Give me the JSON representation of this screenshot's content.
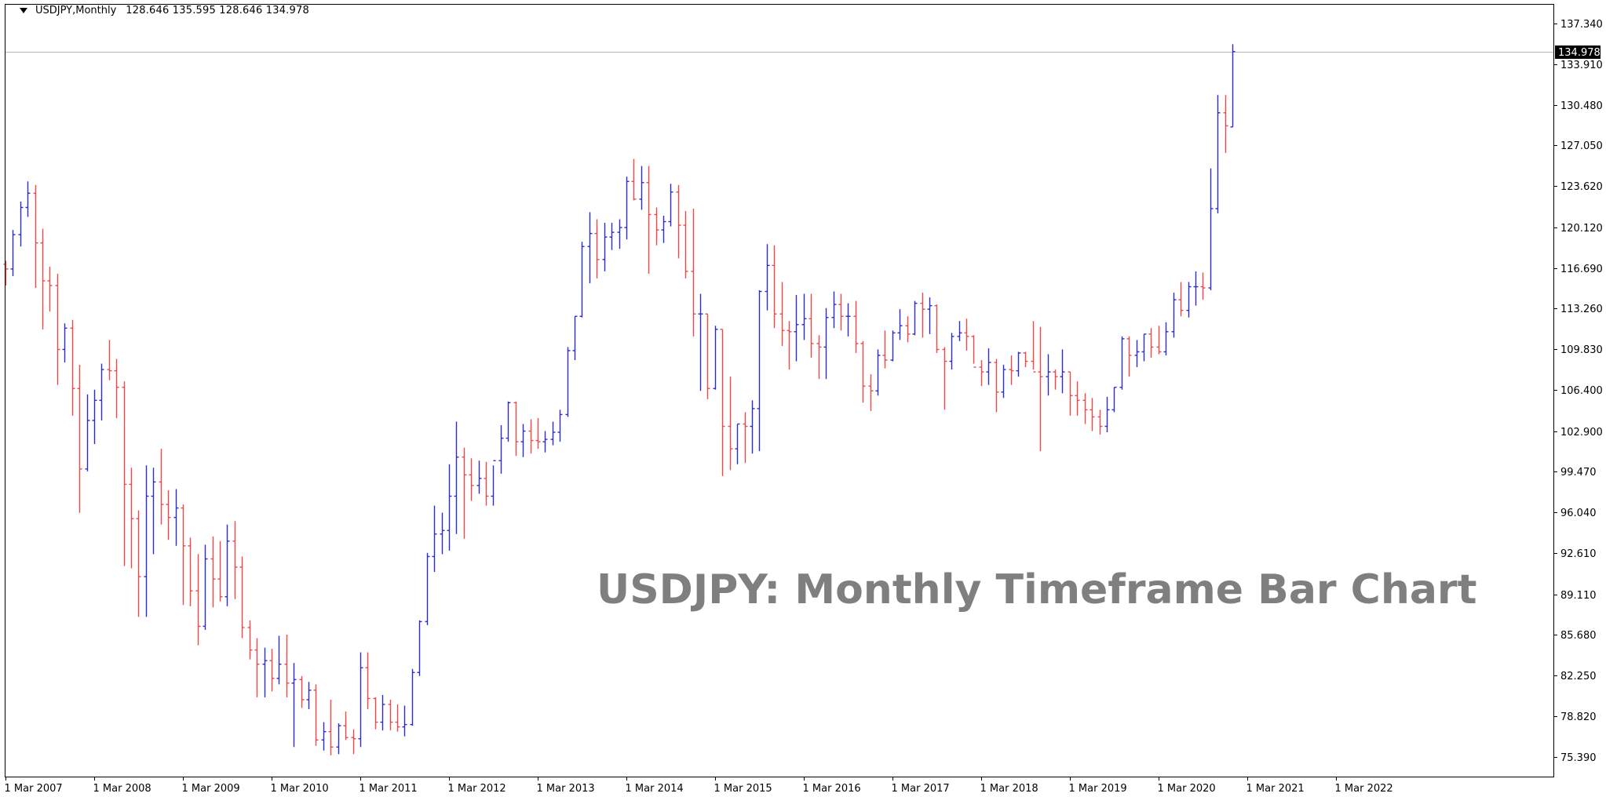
{
  "header": {
    "symbol_timeframe": "USDJPY,Monthly",
    "ohlc": "128.646 135.595 128.646 134.978"
  },
  "watermark": "USDJPY: Monthly Timeframe Bar Chart",
  "colors": {
    "up": "#2a2ad6",
    "down": "#f04848",
    "axis": "#000000",
    "grid": "none",
    "last_price_line": "#b4b4c8",
    "last_price_bg": "#000000",
    "last_price_text": "#ffffff",
    "background": "#ffffff",
    "watermark": "#7f7f7f"
  },
  "chart_data": {
    "type": "ohlc_bar",
    "symbol": "USDJPY",
    "timeframe": "Monthly",
    "grid": false,
    "ylim": [
      73.7,
      139.0
    ],
    "price_axis_ticks": [
      "137.340",
      "133.910",
      "130.480",
      "127.050",
      "123.620",
      "120.120",
      "116.690",
      "113.260",
      "109.830",
      "106.400",
      "102.900",
      "99.470",
      "96.040",
      "92.610",
      "89.110",
      "85.680",
      "82.250",
      "78.820",
      "75.390"
    ],
    "time_axis_ticks": [
      "1 Mar 2007",
      "1 Mar 2008",
      "1 Mar 2009",
      "1 Mar 2010",
      "1 Mar 2011",
      "1 Mar 2012",
      "1 Mar 2013",
      "1 Mar 2014",
      "1 Mar 2015",
      "1 Mar 2016",
      "1 Mar 2017",
      "1 Mar 2018",
      "1 Mar 2019",
      "1 Mar 2020",
      "1 Mar 2021",
      "1 Mar 2022"
    ],
    "last_price": "134.978",
    "bars": [
      [
        117.0,
        117.3,
        115.2,
        116.6
      ],
      [
        116.6,
        119.9,
        116.0,
        119.5
      ],
      [
        119.5,
        122.3,
        118.5,
        121.8
      ],
      [
        121.8,
        124.0,
        121.0,
        123.0
      ],
      [
        123.0,
        123.7,
        115.0,
        118.8
      ],
      [
        118.8,
        120.0,
        111.5,
        115.6
      ],
      [
        115.6,
        116.8,
        113.0,
        115.2
      ],
      [
        115.2,
        116.2,
        106.8,
        109.8
      ],
      [
        109.8,
        112.0,
        108.7,
        111.6
      ],
      [
        111.6,
        112.3,
        104.2,
        106.5
      ],
      [
        106.5,
        108.5,
        96.0,
        99.7
      ],
      [
        99.7,
        106.0,
        99.5,
        103.8
      ],
      [
        103.8,
        106.4,
        101.8,
        105.5
      ],
      [
        105.5,
        108.6,
        103.8,
        108.1
      ],
      [
        108.1,
        110.6,
        107.2,
        108.0
      ],
      [
        108.0,
        109.0,
        104.0,
        106.6
      ],
      [
        106.6,
        107.1,
        91.5,
        98.4
      ],
      [
        98.4,
        99.8,
        91.3,
        95.5
      ],
      [
        95.5,
        96.2,
        87.2,
        90.6
      ],
      [
        90.6,
        100.0,
        87.2,
        97.4
      ],
      [
        97.4,
        99.8,
        92.5,
        98.6
      ],
      [
        98.6,
        101.4,
        95.0,
        96.7
      ],
      [
        96.7,
        97.9,
        93.7,
        95.6
      ],
      [
        95.6,
        98.0,
        93.2,
        96.4
      ],
      [
        96.4,
        96.7,
        88.2,
        93.2
      ],
      [
        93.2,
        93.9,
        88.1,
        89.4
      ],
      [
        89.4,
        92.5,
        84.8,
        86.4
      ],
      [
        86.4,
        93.3,
        86.1,
        92.1
      ],
      [
        92.1,
        94.0,
        88.0,
        90.4
      ],
      [
        90.4,
        93.6,
        88.5,
        88.9
      ],
      [
        88.9,
        95.0,
        88.1,
        93.6
      ],
      [
        93.6,
        95.3,
        88.7,
        91.4
      ],
      [
        91.4,
        92.3,
        85.4,
        86.3
      ],
      [
        86.3,
        86.9,
        83.6,
        84.4
      ],
      [
        84.4,
        85.4,
        80.4,
        83.2
      ],
      [
        83.2,
        84.6,
        80.4,
        83.5
      ],
      [
        83.5,
        84.5,
        80.9,
        82.0
      ],
      [
        82.0,
        85.6,
        81.5,
        83.2
      ],
      [
        83.2,
        85.7,
        80.4,
        81.6
      ],
      [
        81.6,
        83.3,
        76.2,
        81.9
      ],
      [
        81.9,
        82.2,
        79.5,
        80.2
      ],
      [
        80.2,
        81.7,
        79.4,
        81.0
      ],
      [
        81.0,
        81.5,
        76.3,
        76.8
      ],
      [
        76.8,
        78.3,
        75.9,
        77.5
      ],
      [
        77.5,
        80.2,
        75.5,
        76.2
      ],
      [
        76.2,
        78.2,
        75.6,
        78.0
      ],
      [
        78.0,
        79.2,
        76.8,
        77.0
      ],
      [
        77.0,
        77.7,
        75.6,
        76.9
      ],
      [
        76.9,
        84.2,
        76.2,
        82.9
      ],
      [
        82.9,
        84.2,
        79.4,
        80.3
      ],
      [
        80.3,
        80.4,
        77.7,
        78.3
      ],
      [
        78.3,
        80.6,
        77.6,
        79.8
      ],
      [
        79.8,
        80.2,
        77.6,
        78.3
      ],
      [
        78.3,
        79.8,
        77.5,
        77.9
      ],
      [
        77.9,
        79.7,
        77.1,
        78.1
      ],
      [
        78.1,
        82.8,
        78.0,
        82.5
      ],
      [
        82.5,
        86.9,
        82.2,
        86.8
      ],
      [
        86.8,
        92.6,
        86.5,
        92.3
      ],
      [
        92.3,
        96.6,
        91.0,
        94.2
      ],
      [
        94.2,
        96.0,
        92.5,
        94.5
      ],
      [
        94.5,
        100.1,
        92.8,
        97.4
      ],
      [
        97.4,
        103.7,
        94.2,
        100.7
      ],
      [
        100.7,
        101.5,
        93.8,
        99.2
      ],
      [
        99.2,
        100.6,
        97.0,
        98.3
      ],
      [
        98.3,
        100.4,
        97.6,
        98.9
      ],
      [
        98.9,
        100.3,
        96.6,
        97.4
      ],
      [
        97.4,
        100.0,
        96.6,
        100.4
      ],
      [
        100.4,
        103.4,
        99.3,
        102.3
      ],
      [
        102.3,
        105.4,
        102.0,
        105.3
      ],
      [
        105.3,
        105.4,
        100.8,
        102.0
      ],
      [
        102.0,
        103.5,
        100.7,
        102.9
      ],
      [
        102.9,
        103.9,
        101.0,
        102.1
      ],
      [
        102.1,
        104.0,
        101.4,
        102.0
      ],
      [
        102.0,
        102.9,
        101.1,
        102.2
      ],
      [
        102.2,
        103.7,
        101.7,
        102.8
      ],
      [
        102.8,
        104.7,
        102.0,
        104.3
      ],
      [
        104.3,
        110.0,
        104.1,
        109.7
      ],
      [
        109.7,
        112.6,
        108.9,
        112.6
      ],
      [
        112.6,
        118.9,
        112.5,
        118.5
      ],
      [
        118.5,
        121.4,
        115.4,
        119.6
      ],
      [
        119.6,
        120.8,
        115.8,
        117.4
      ],
      [
        117.4,
        120.5,
        116.4,
        119.3
      ],
      [
        119.3,
        120.5,
        118.2,
        119.7
      ],
      [
        119.7,
        120.8,
        118.3,
        120.1
      ],
      [
        120.1,
        124.4,
        119.1,
        124.0
      ],
      [
        124.0,
        125.9,
        122.4,
        122.5
      ],
      [
        122.5,
        125.3,
        121.6,
        123.9
      ],
      [
        123.9,
        125.3,
        116.2,
        121.2
      ],
      [
        121.2,
        121.8,
        118.6,
        119.9
      ],
      [
        119.9,
        121.1,
        118.8,
        120.6
      ],
      [
        120.6,
        123.8,
        120.2,
        123.1
      ],
      [
        123.1,
        123.7,
        117.5,
        120.3
      ],
      [
        120.3,
        121.5,
        115.8,
        116.4
      ],
      [
        116.4,
        121.7,
        110.9,
        112.8
      ],
      [
        112.8,
        114.5,
        106.3,
        112.8
      ],
      [
        112.8,
        112.8,
        105.6,
        106.5
      ],
      [
        106.5,
        111.8,
        106.4,
        111.5
      ],
      [
        111.5,
        111.5,
        99.1,
        103.3
      ],
      [
        103.3,
        107.5,
        99.6,
        101.4
      ],
      [
        101.4,
        103.5,
        100.1,
        103.5
      ],
      [
        103.5,
        104.5,
        100.2,
        103.3
      ],
      [
        103.3,
        105.5,
        101.0,
        104.8
      ],
      [
        104.8,
        114.8,
        101.2,
        114.7
      ],
      [
        114.7,
        118.7,
        113.1,
        116.9
      ],
      [
        116.9,
        118.6,
        111.6,
        112.8
      ],
      [
        112.8,
        115.5,
        110.1,
        111.4
      ],
      [
        111.4,
        112.2,
        108.1,
        111.3
      ],
      [
        111.3,
        114.4,
        108.8,
        111.9
      ],
      [
        111.9,
        114.5,
        110.6,
        112.4
      ],
      [
        112.4,
        114.5,
        109.1,
        110.3
      ],
      [
        110.3,
        111.0,
        107.3,
        110.0
      ],
      [
        110.0,
        113.3,
        107.3,
        112.5
      ],
      [
        112.5,
        114.7,
        111.6,
        113.6
      ],
      [
        113.6,
        114.5,
        111.4,
        112.6
      ],
      [
        112.6,
        113.7,
        110.9,
        112.6
      ],
      [
        112.6,
        113.9,
        109.5,
        110.3
      ],
      [
        110.3,
        110.5,
        105.3,
        106.7
      ],
      [
        106.7,
        107.7,
        104.6,
        106.3
      ],
      [
        106.3,
        109.8,
        105.9,
        109.3
      ],
      [
        109.3,
        111.4,
        108.2,
        108.9
      ],
      [
        108.9,
        111.4,
        108.8,
        111.2
      ],
      [
        111.2,
        113.2,
        110.6,
        111.8
      ],
      [
        111.8,
        112.6,
        110.4,
        111.1
      ],
      [
        111.1,
        113.9,
        111.0,
        113.7
      ],
      [
        113.7,
        114.6,
        110.8,
        113.2
      ],
      [
        113.2,
        114.2,
        111.1,
        113.5
      ],
      [
        113.5,
        113.6,
        109.5,
        109.8
      ],
      [
        109.8,
        110.0,
        104.7,
        108.8
      ],
      [
        108.8,
        111.2,
        108.1,
        110.9
      ],
      [
        110.9,
        112.2,
        110.5,
        111.2
      ],
      [
        111.2,
        112.4,
        109.7,
        110.9
      ],
      [
        110.9,
        111.0,
        108.6,
        108.3
      ],
      [
        108.3,
        108.9,
        106.7,
        107.9
      ],
      [
        107.9,
        109.9,
        106.8,
        108.7
      ],
      [
        108.7,
        109.0,
        104.5,
        106.2
      ],
      [
        106.2,
        108.5,
        105.7,
        108.1
      ],
      [
        108.1,
        109.3,
        106.8,
        108.0
      ],
      [
        108.0,
        109.6,
        107.5,
        109.5
      ],
      [
        109.5,
        109.6,
        108.3,
        108.8
      ],
      [
        108.8,
        112.2,
        108.1,
        107.9
      ],
      [
        107.9,
        111.7,
        101.2,
        107.5
      ],
      [
        107.5,
        109.4,
        105.9,
        107.9
      ],
      [
        107.9,
        108.1,
        106.4,
        107.5
      ],
      [
        107.5,
        109.8,
        106.1,
        107.9
      ],
      [
        107.9,
        107.9,
        104.2,
        105.9
      ],
      [
        105.9,
        107.1,
        104.2,
        105.5
      ],
      [
        105.5,
        106.1,
        103.5,
        104.7
      ],
      [
        104.7,
        105.7,
        102.9,
        104.1
      ],
      [
        104.1,
        104.7,
        102.6,
        103.3
      ],
      [
        103.3,
        105.8,
        102.8,
        104.7
      ],
      [
        104.7,
        106.6,
        104.5,
        106.6
      ],
      [
        106.6,
        110.9,
        106.4,
        110.7
      ],
      [
        110.7,
        110.9,
        107.5,
        109.3
      ],
      [
        109.3,
        110.6,
        108.3,
        109.6
      ],
      [
        109.6,
        111.1,
        108.8,
        111.1
      ],
      [
        111.1,
        111.6,
        109.1,
        110.0
      ],
      [
        110.0,
        111.8,
        109.4,
        109.6
      ],
      [
        109.6,
        112.1,
        109.3,
        111.3
      ],
      [
        111.3,
        114.6,
        110.8,
        114.0
      ],
      [
        114.0,
        115.5,
        112.6,
        113.1
      ],
      [
        113.1,
        115.5,
        112.5,
        115.1
      ],
      [
        115.1,
        116.4,
        113.5,
        115.1
      ],
      [
        115.1,
        116.3,
        114.0,
        115.0
      ],
      [
        115.0,
        125.1,
        114.8,
        121.7
      ],
      [
        121.7,
        131.3,
        121.3,
        129.8
      ],
      [
        129.8,
        131.3,
        126.4,
        128.7
      ],
      [
        128.6,
        135.6,
        128.6,
        134.978
      ]
    ]
  }
}
